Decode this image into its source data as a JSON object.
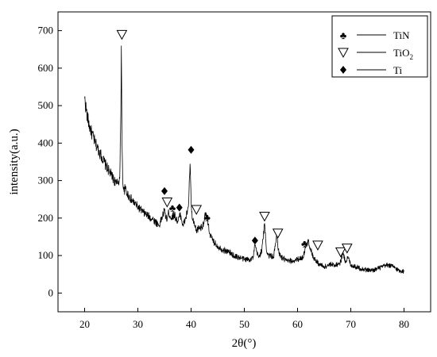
{
  "chart_data": {
    "type": "line",
    "xlabel": "2θ(°)",
    "ylabel": "intensity(a.u.)",
    "xlim": [
      15,
      85
    ],
    "ylim": [
      -50,
      750
    ],
    "xticks": [
      20,
      30,
      40,
      50,
      60,
      70,
      80
    ],
    "yticks": [
      0,
      100,
      200,
      300,
      400,
      500,
      600,
      700
    ],
    "x_tick_labels": [
      "20",
      "30",
      "40",
      "50",
      "60",
      "70",
      "80"
    ],
    "y_tick_labels": [
      "0",
      "100",
      "200",
      "300",
      "400",
      "500",
      "600",
      "700"
    ],
    "grid": false,
    "legend": {
      "position": "top-right",
      "entries": [
        {
          "symbol": "club",
          "label": "TiN"
        },
        {
          "symbol": "triangle",
          "label": "TiO2"
        },
        {
          "symbol": "diamond",
          "label": "Ti"
        }
      ]
    },
    "series": [
      {
        "color": "#000000",
        "x": [
          20,
          20.5,
          21,
          22,
          23,
          24,
          25,
          26,
          26.6,
          26.8,
          26.9,
          27,
          27.1,
          27.2,
          27.4,
          27.6,
          28,
          29,
          30,
          31,
          32,
          33,
          34,
          35,
          35.4,
          35.8,
          36.3,
          36.8,
          37.5,
          38,
          38.5,
          39,
          39.5,
          39.8,
          40,
          40.2,
          40.5,
          41,
          41.5,
          42,
          42.5,
          42.8,
          43,
          43.5,
          44,
          45,
          46,
          47,
          48,
          49,
          50,
          51,
          51.7,
          52,
          52.3,
          52.7,
          53.3,
          53.8,
          54.2,
          54.6,
          55,
          55.5,
          55.8,
          56.1,
          56.5,
          57,
          58,
          59,
          60,
          61,
          61.5,
          62,
          62.5,
          63,
          63.5,
          64,
          65,
          66,
          67,
          68,
          68.5,
          69,
          69.5,
          70,
          71,
          72,
          73,
          74,
          75,
          76,
          77,
          78,
          79,
          80
        ],
        "y": [
          520,
          470,
          440,
          400,
          370,
          340,
          315,
          290,
          305,
          480,
          660,
          430,
          350,
          290,
          270,
          280,
          265,
          245,
          230,
          215,
          205,
          195,
          180,
          220,
          195,
          215,
          200,
          210,
          190,
          210,
          180,
          200,
          230,
          345,
          245,
          200,
          185,
          165,
          175,
          175,
          195,
          215,
          195,
          160,
          140,
          125,
          115,
          110,
          100,
          95,
          90,
          90,
          95,
          130,
          110,
          95,
          115,
          185,
          110,
          100,
          100,
          95,
          125,
          155,
          105,
          95,
          85,
          85,
          90,
          95,
          120,
          140,
          115,
          95,
          85,
          78,
          70,
          75,
          75,
          80,
          105,
          85,
          95,
          75,
          70,
          65,
          62,
          60,
          65,
          70,
          75,
          70,
          60,
          58
        ]
      }
    ],
    "annotations": [
      {
        "symbol": "triangle",
        "x": 27.0,
        "y": 690
      },
      {
        "symbol": "diamond",
        "x": 35.0,
        "y": 272
      },
      {
        "symbol": "triangle",
        "x": 35.5,
        "y": 243
      },
      {
        "symbol": "club",
        "x": 36.5,
        "y": 228
      },
      {
        "symbol": "diamond",
        "x": 37.8,
        "y": 228
      },
      {
        "symbol": "diamond",
        "x": 40.0,
        "y": 382
      },
      {
        "symbol": "triangle",
        "x": 41.0,
        "y": 223
      },
      {
        "symbol": "club",
        "x": 43.0,
        "y": 203
      },
      {
        "symbol": "diamond",
        "x": 52.0,
        "y": 140
      },
      {
        "symbol": "triangle",
        "x": 53.8,
        "y": 205
      },
      {
        "symbol": "triangle",
        "x": 56.3,
        "y": 160
      },
      {
        "symbol": "club",
        "x": 61.3,
        "y": 133
      },
      {
        "symbol": "triangle",
        "x": 63.8,
        "y": 128
      },
      {
        "symbol": "triangle",
        "x": 68.1,
        "y": 110
      },
      {
        "symbol": "triangle",
        "x": 69.3,
        "y": 120
      }
    ]
  }
}
